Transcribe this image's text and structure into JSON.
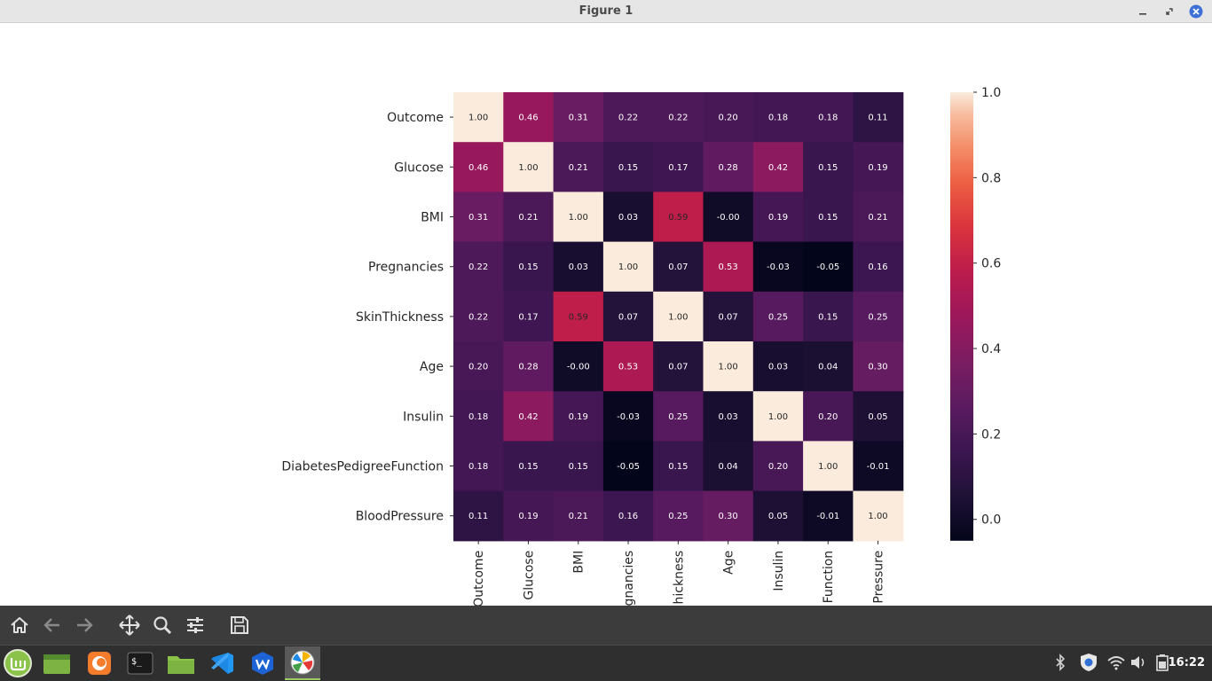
{
  "window": {
    "title": "Figure 1"
  },
  "chart_data": {
    "type": "heatmap",
    "rows": [
      "Outcome",
      "Glucose",
      "BMI",
      "Pregnancies",
      "SkinThickness",
      "Age",
      "Insulin",
      "DiabetesPedigreeFunction",
      "BloodPressure"
    ],
    "columns": [
      "Outcome",
      "Glucose",
      "BMI",
      "Pregnancies",
      "SkinThickness",
      "Age",
      "Insulin",
      "DiabetesPedigreeFunction",
      "BloodPressure"
    ],
    "column_tick_labels_visible": [
      "Outcome",
      "Glucose",
      "BMI",
      "gnancies",
      "hickness",
      "Age",
      "Insulin",
      "Function",
      "Pressure"
    ],
    "values": [
      [
        "1.00",
        "0.46",
        "0.31",
        "0.22",
        "0.22",
        "0.20",
        "0.18",
        "0.18",
        "0.11"
      ],
      [
        "0.46",
        "1.00",
        "0.21",
        "0.15",
        "0.17",
        "0.28",
        "0.42",
        "0.15",
        "0.19"
      ],
      [
        "0.31",
        "0.21",
        "1.00",
        "0.03",
        "0.59",
        "-0.00",
        "0.19",
        "0.15",
        "0.21"
      ],
      [
        "0.22",
        "0.15",
        "0.03",
        "1.00",
        "0.07",
        "0.53",
        "-0.03",
        "-0.05",
        "0.16"
      ],
      [
        "0.22",
        "0.17",
        "0.59",
        "0.07",
        "1.00",
        "0.07",
        "0.25",
        "0.15",
        "0.25"
      ],
      [
        "0.20",
        "0.28",
        "-0.00",
        "0.53",
        "0.07",
        "1.00",
        "0.03",
        "0.04",
        "0.30"
      ],
      [
        "0.18",
        "0.42",
        "0.19",
        "-0.03",
        "0.25",
        "0.03",
        "1.00",
        "0.20",
        "0.05"
      ],
      [
        "0.18",
        "0.15",
        "0.15",
        "-0.05",
        "0.15",
        "0.04",
        "0.20",
        "1.00",
        "-0.01"
      ],
      [
        "0.11",
        "0.19",
        "0.21",
        "0.16",
        "0.25",
        "0.30",
        "0.05",
        "-0.01",
        "1.00"
      ]
    ],
    "colormap": "rocket",
    "vmin": -0.05,
    "vmax": 1.0,
    "colorbar_ticks": [
      "0.0",
      "0.2",
      "0.4",
      "0.6",
      "0.8",
      "1.0"
    ]
  },
  "toolbar": {
    "buttons": [
      {
        "name": "home-button",
        "icon": "home-icon"
      },
      {
        "name": "back-button",
        "icon": "arrow-left-icon"
      },
      {
        "name": "forward-button",
        "icon": "arrow-right-icon"
      },
      {
        "name": "pan-button",
        "icon": "move-icon"
      },
      {
        "name": "zoom-button",
        "icon": "magnifier-icon"
      },
      {
        "name": "configure-subplots-button",
        "icon": "sliders-icon"
      },
      {
        "name": "save-button",
        "icon": "floppy-icon"
      }
    ]
  },
  "taskbar": {
    "apps": [
      "mint-menu",
      "files-green",
      "firefox",
      "terminal",
      "file-manager",
      "vscode",
      "wps-office",
      "matplotlib-figure"
    ],
    "clock": "16:22"
  }
}
